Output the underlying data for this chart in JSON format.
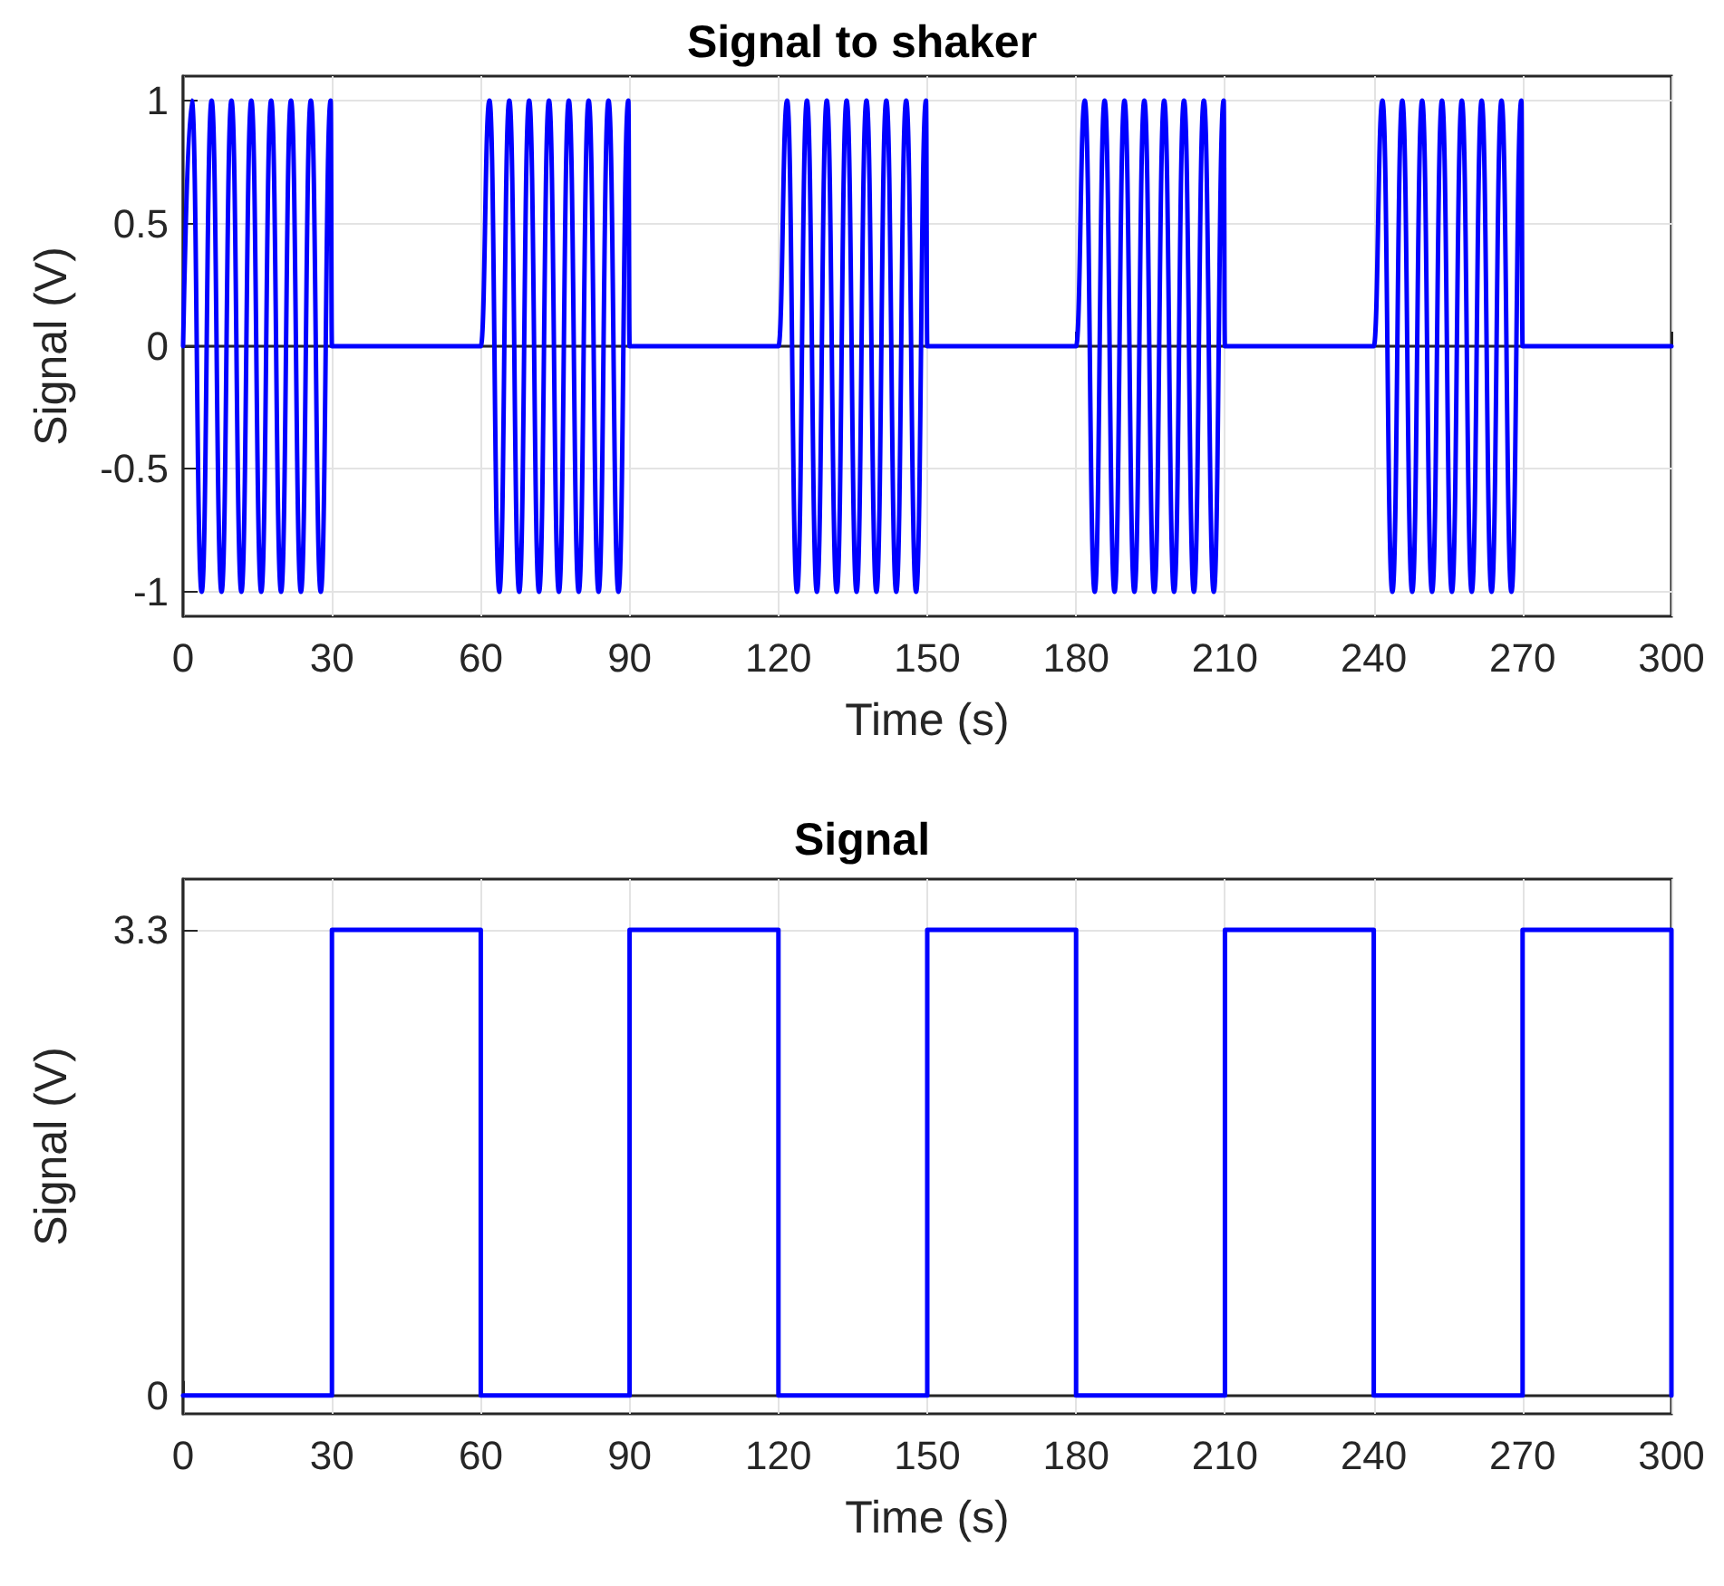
{
  "chart_data": [
    {
      "type": "line",
      "title": "Signal to shaker",
      "xlabel": "Time (s)",
      "ylabel": "Signal (V)",
      "xlim": [
        0,
        300
      ],
      "xticks": [
        0,
        30,
        60,
        90,
        120,
        150,
        180,
        210,
        240,
        270,
        300
      ],
      "ylim": [
        -1.1,
        1.1
      ],
      "yticks": [
        -1,
        -0.5,
        0,
        0.5,
        1
      ],
      "grid": true,
      "marker": "none",
      "line_style": "solid",
      "series": [
        {
          "color": "#0000ff",
          "x": [
            0,
            1.75,
            3.75,
            5.75,
            7.75,
            9.75,
            11.75,
            13.75,
            15.75,
            17.75,
            19.75,
            21.75,
            23.75,
            25.75,
            27.75,
            29.75,
            30,
            60,
            61.75,
            63.75,
            65.75,
            67.75,
            69.75,
            71.75,
            73.75,
            75.75,
            77.75,
            79.75,
            81.75,
            83.75,
            85.75,
            87.75,
            89.75,
            90,
            120,
            121.75,
            123.75,
            125.75,
            127.75,
            129.75,
            131.75,
            133.75,
            135.75,
            137.75,
            139.75,
            141.75,
            143.75,
            145.75,
            147.75,
            149.75,
            150,
            180,
            181.75,
            183.75,
            185.75,
            187.75,
            189.75,
            191.75,
            193.75,
            195.75,
            197.75,
            199.75,
            201.75,
            203.75,
            205.75,
            207.75,
            209.75,
            210,
            240,
            241.75,
            243.75,
            245.75,
            247.75,
            249.75,
            251.75,
            253.75,
            255.75,
            257.75,
            259.75,
            261.75,
            263.75,
            265.75,
            267.75,
            269.75,
            270,
            300
          ],
          "values": [
            0,
            1,
            -1,
            1,
            -1,
            1,
            -1,
            1,
            -1,
            1,
            -1,
            1,
            -1,
            1,
            -1,
            1,
            0,
            0,
            1,
            -1,
            1,
            -1,
            1,
            -1,
            1,
            -1,
            1,
            -1,
            1,
            -1,
            1,
            -1,
            1,
            0,
            0,
            1,
            -1,
            1,
            -1,
            1,
            -1,
            1,
            -1,
            1,
            -1,
            1,
            -1,
            1,
            -1,
            1,
            0,
            0,
            1,
            -1,
            1,
            -1,
            1,
            -1,
            1,
            -1,
            1,
            -1,
            1,
            -1,
            1,
            -1,
            1,
            0,
            0,
            1,
            -1,
            1,
            -1,
            1,
            -1,
            1,
            -1,
            1,
            -1,
            1,
            -1,
            1,
            -1,
            1,
            0,
            0
          ]
        }
      ]
    },
    {
      "type": "step",
      "title": "Signal",
      "xlabel": "Time (s)",
      "ylabel": "Signal (V)",
      "xlim": [
        0,
        300
      ],
      "xticks": [
        0,
        30,
        60,
        90,
        120,
        150,
        180,
        210,
        240,
        270,
        300
      ],
      "ylim": [
        -0.13,
        3.66
      ],
      "yticks": [
        0,
        3.3
      ],
      "grid": true,
      "marker": "none",
      "line_style": "solid",
      "series": [
        {
          "color": "#0000ff",
          "x": [
            0,
            30,
            60,
            90,
            120,
            150,
            180,
            210,
            240,
            270,
            300
          ],
          "values": [
            0,
            3.3,
            0,
            3.3,
            0,
            3.3,
            0,
            3.3,
            0,
            3.3,
            0
          ]
        }
      ]
    }
  ]
}
